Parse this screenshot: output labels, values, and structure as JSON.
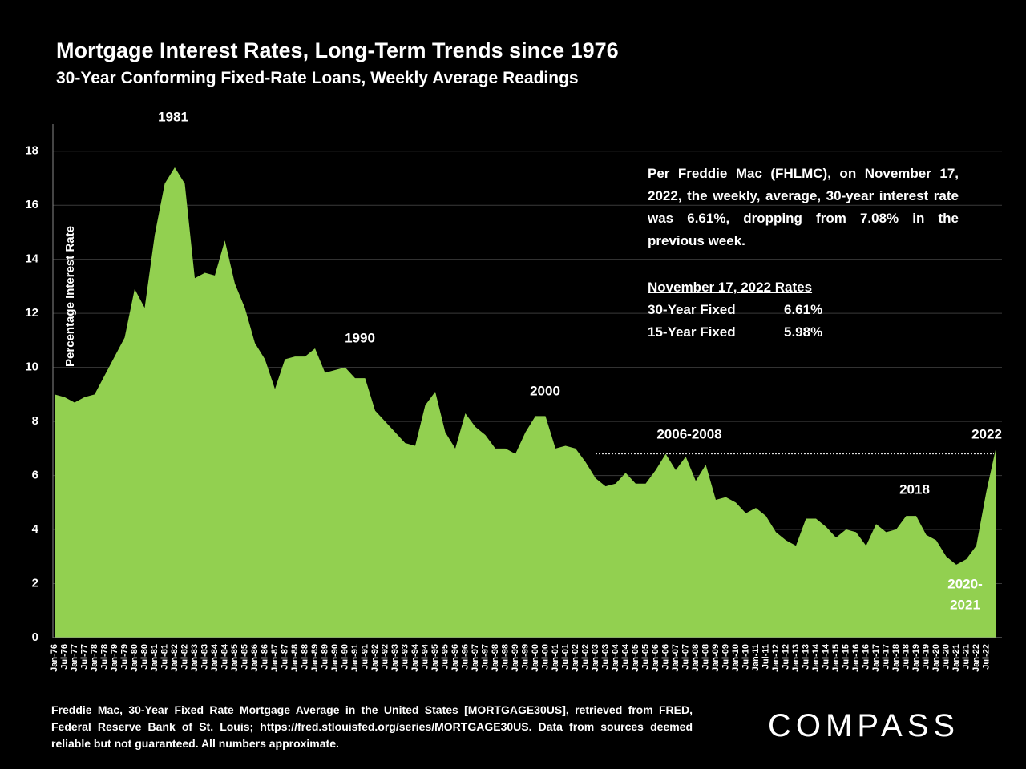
{
  "chart_data": {
    "type": "area",
    "title": "Mortgage Interest Rates, Long-Term Trends since 1976",
    "subtitle": "30-Year Conforming Fixed-Rate Loans, Weekly Average Readings",
    "y_label": "Percentage Interest  Rate",
    "color": "#92d050",
    "categories": [
      "Jan-76",
      "Jul-76",
      "Jan-77",
      "Jul-77",
      "Jan-78",
      "Jul-78",
      "Jan-79",
      "Jul-79",
      "Jan-80",
      "Jul-80",
      "Jan-81",
      "Jul-81",
      "Jan-82",
      "Jul-82",
      "Jan-83",
      "Jul-83",
      "Jan-84",
      "Jul-84",
      "Jan-85",
      "Jul-85",
      "Jan-86",
      "Jul-86",
      "Jan-87",
      "Jul-87",
      "Jan-88",
      "Jul-88",
      "Jan-89",
      "Jul-89",
      "Jan-90",
      "Jul-90",
      "Jan-91",
      "Jul-91",
      "Jan-92",
      "Jul-92",
      "Jan-93",
      "Jul-93",
      "Jan-94",
      "Jul-94",
      "Jan-95",
      "Jul-95",
      "Jan-96",
      "Jul-96",
      "Jan-97",
      "Jul-97",
      "Jan-98",
      "Jul-98",
      "Jan-99",
      "Jul-99",
      "Jan-00",
      "Jul-00",
      "Jan-01",
      "Jul-01",
      "Jan-02",
      "Jul-02",
      "Jan-03",
      "Jul-03",
      "Jan-04",
      "Jul-04",
      "Jan-05",
      "Jul-05",
      "Jan-06",
      "Jul-06",
      "Jan-07",
      "Jul-07",
      "Jan-08",
      "Jul-08",
      "Jan-09",
      "Jul-09",
      "Jan-10",
      "Jul-10",
      "Jan-11",
      "Jul-11",
      "Jan-12",
      "Jul-12",
      "Jan-13",
      "Jul-13",
      "Jan-14",
      "Jul-14",
      "Jan-15",
      "Jul-15",
      "Jan-16",
      "Jul-16",
      "Jan-17",
      "Jul-17",
      "Jan-18",
      "Jul-18",
      "Jan-19",
      "Jul-19",
      "Jan-20",
      "Jul-20",
      "Jan-21",
      "Jul-21",
      "Jan-22",
      "Jul-22",
      null
    ],
    "values": [
      9.0,
      8.9,
      8.7,
      8.9,
      9.0,
      9.7,
      10.4,
      11.1,
      12.9,
      12.2,
      14.9,
      16.8,
      17.4,
      16.8,
      13.3,
      13.5,
      13.4,
      14.7,
      13.1,
      12.2,
      10.9,
      10.3,
      9.2,
      10.3,
      10.4,
      10.4,
      10.7,
      9.8,
      9.9,
      10.0,
      9.6,
      9.6,
      8.4,
      8.0,
      7.6,
      7.2,
      7.1,
      8.6,
      9.1,
      7.6,
      7.0,
      8.3,
      7.8,
      7.5,
      7.0,
      7.0,
      6.8,
      7.6,
      8.2,
      8.2,
      7.0,
      7.1,
      7.0,
      6.5,
      5.9,
      5.6,
      5.7,
      6.1,
      5.7,
      5.7,
      6.2,
      6.8,
      6.2,
      6.7,
      5.8,
      6.4,
      5.1,
      5.2,
      5.0,
      4.6,
      4.8,
      4.5,
      3.9,
      3.6,
      3.4,
      4.4,
      4.4,
      4.1,
      3.7,
      4.0,
      3.9,
      3.4,
      4.2,
      3.9,
      4.0,
      4.5,
      4.5,
      3.8,
      3.6,
      3.0,
      2.7,
      2.9,
      3.4,
      5.4,
      7.08
    ],
    "ylim": [
      0,
      19
    ],
    "yticks": [
      0,
      2,
      4,
      6,
      8,
      10,
      12,
      14,
      16,
      18
    ],
    "reference_line": 6.8,
    "annotations": [
      "1981",
      "1990",
      "2000",
      "2006-2008",
      "2018",
      "2020-",
      "2021",
      "2022"
    ],
    "note": "Per Freddie Mac (FHLMC), on November 17, 2022, the weekly, average, 30-year interest rate was 6.61%, dropping from 7.08% in the previous week.",
    "rates": {
      "heading": "November 17, 2022 Rates",
      "rows": [
        [
          "30-Year Fixed",
          "6.61%"
        ],
        [
          "15-Year Fixed",
          "5.98%"
        ]
      ]
    },
    "source": "Freddie Mac, 30-Year Fixed Rate Mortgage Average in the United States [MORTGAGE30US], retrieved from FRED, Federal Reserve Bank of St. Louis; https://fred.stlouisfed.org/series/MORTGAGE30US. Data from sources deemed reliable but not guaranteed. All numbers approximate.",
    "logo": "COMPASS"
  }
}
